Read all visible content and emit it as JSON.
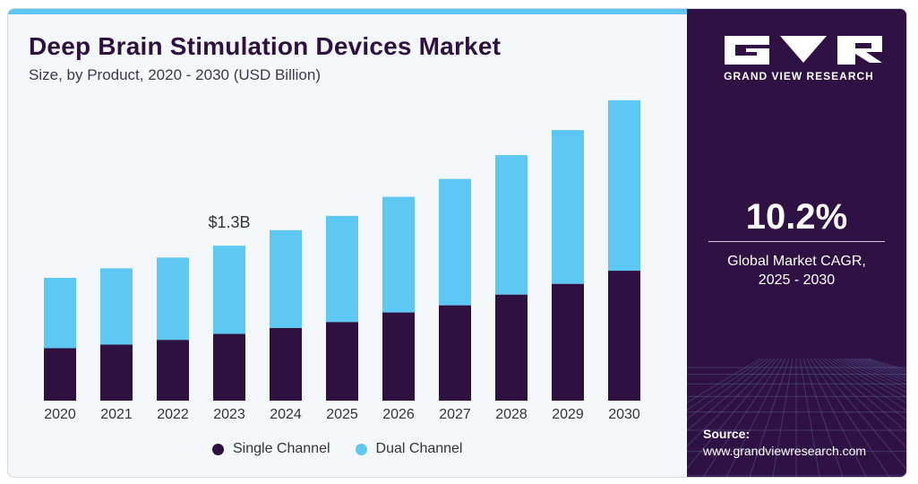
{
  "header": {
    "title": "Deep Brain Stimulation Devices Market",
    "subtitle": "Size, by Product, 2020 - 2030 (USD Billion)"
  },
  "annotation": {
    "text": "$1.3B",
    "category": "2023"
  },
  "colors": {
    "single_channel": "#2e1141",
    "dual_channel": "#5ec8f5",
    "panel": "#2f1243",
    "accent_bar": "#5ec6f0"
  },
  "chart_data": {
    "type": "bar",
    "stacked": true,
    "title": "Deep Brain Stimulation Devices Market",
    "subtitle": "Size, by Product, 2020 - 2030 (USD Billion)",
    "xlabel": "",
    "ylabel": "",
    "ylim": [
      0,
      2.5
    ],
    "grid": false,
    "legend_position": "bottom",
    "categories": [
      "2020",
      "2021",
      "2022",
      "2023",
      "2024",
      "2025",
      "2026",
      "2027",
      "2028",
      "2029",
      "2030"
    ],
    "series": [
      {
        "name": "Single Channel",
        "values": [
          0.44,
          0.47,
          0.51,
          0.56,
          0.61,
          0.66,
          0.74,
          0.8,
          0.89,
          0.98,
          1.09
        ]
      },
      {
        "name": "Dual Channel",
        "values": [
          0.59,
          0.64,
          0.69,
          0.74,
          0.82,
          0.89,
          0.97,
          1.06,
          1.17,
          1.29,
          1.43
        ]
      }
    ]
  },
  "legend": {
    "items": [
      {
        "label": "Single Channel",
        "color": "#2e1141"
      },
      {
        "label": "Dual Channel",
        "color": "#5ec8f5"
      }
    ]
  },
  "brand": {
    "name": "GRAND VIEW RESEARCH",
    "logo_icon": "gvr-logo-icon"
  },
  "cagr": {
    "value": "10.2%",
    "label_line1": "Global Market CAGR,",
    "label_line2": "2025 - 2030"
  },
  "source": {
    "label": "Source:",
    "url": "www.grandviewresearch.com"
  }
}
